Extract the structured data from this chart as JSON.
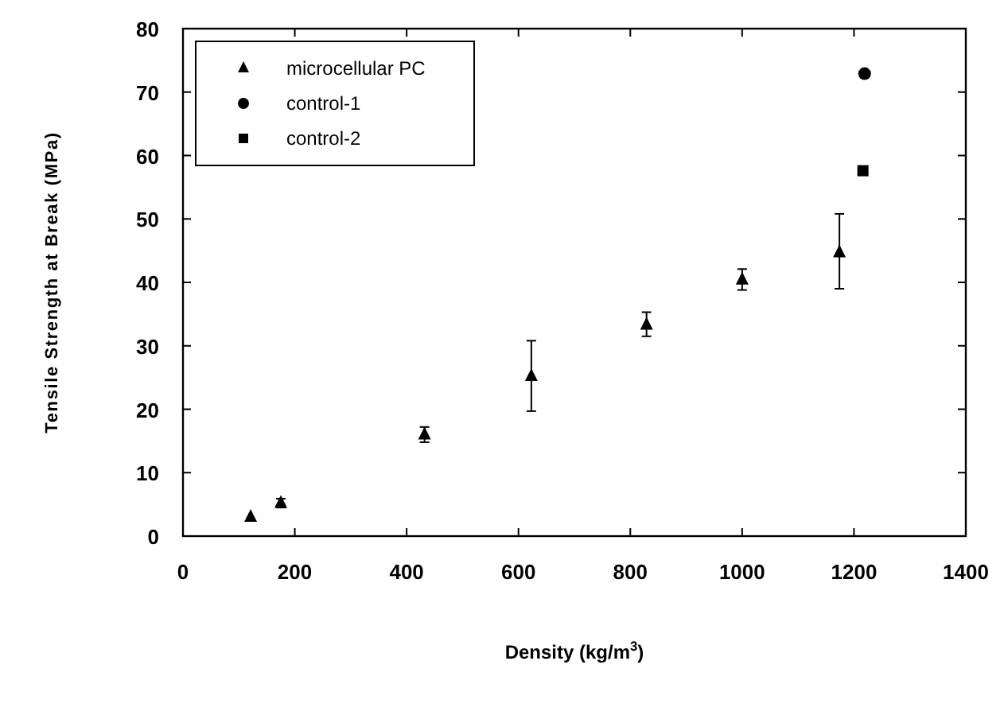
{
  "chart_data": {
    "type": "scatter",
    "xlabel": "Density (kg/m$^{3}$)",
    "ylabel": "Tensile Strength at Break (MPa)",
    "xlim": [
      0,
      1400
    ],
    "xticks": [
      0,
      200,
      400,
      600,
      800,
      1000,
      1200,
      1400
    ],
    "ylim": [
      0,
      80
    ],
    "yticks": [
      0,
      10,
      20,
      30,
      40,
      50,
      60,
      70,
      80
    ],
    "legend": "top left",
    "grid": false,
    "series": [
      {
        "name": "microcellular PC",
        "color": "#000000",
        "marker": "triangle",
        "x": [
          121,
          175,
          432,
          623,
          829,
          1000,
          1174
        ],
        "values": [
          3,
          5.2,
          16,
          25.2,
          33.3,
          40.4,
          44.7
        ],
        "errors": [
          null,
          0.7,
          1.2,
          [
            19.7,
            30.8
          ],
          [
            31.5,
            35.3
          ],
          [
            38.8,
            42.1
          ],
          [
            39,
            50.8
          ]
        ]
      },
      {
        "name": "control-1",
        "color": "#000000",
        "marker": "circle",
        "x": [
          1219
        ],
        "values": [
          72.9
        ]
      },
      {
        "name": "control-2",
        "color": "#000000",
        "marker": "square",
        "x": [
          1216
        ],
        "values": [
          57.6
        ]
      }
    ]
  }
}
